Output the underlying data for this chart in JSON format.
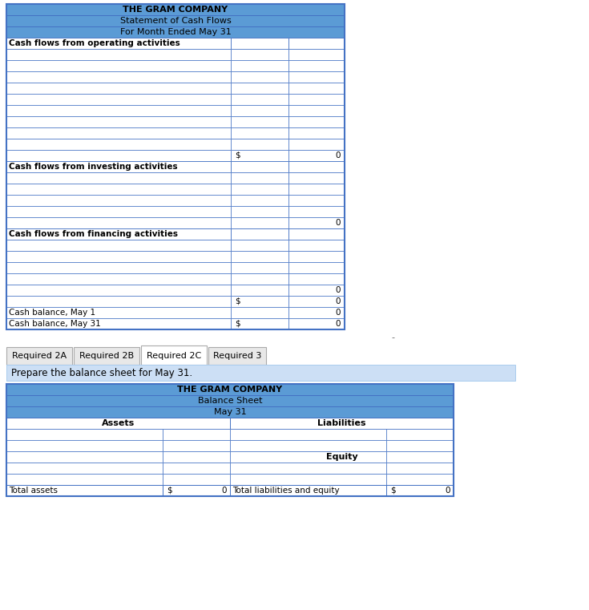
{
  "title1": "THE GRAM COMPANY",
  "subtitle1": "Statement of Cash Flows",
  "subtitle2": "For Month Ended May 31",
  "section1_header": "Cash flows from operating activities",
  "section2_header": "Cash flows from investing activities",
  "section3_header": "Cash flows from financing activities",
  "cash_bal_may1_label": "Cash balance, May 1",
  "cash_bal_may31_label": "Cash balance, May 31",
  "header_bg": "#5B9BD5",
  "row_bg_white": "#FFFFFF",
  "border_color": "#4472C4",
  "inner_line_color": "#4472C4",
  "table_outer_border": "#4472C4",
  "tab_active_label": "Required 2C",
  "tab_labels": [
    "Required 2A",
    "Required 2B",
    "Required 2C",
    "Required 3"
  ],
  "instruction_text": "Prepare the balance sheet for May 31.",
  "bs_title1": "THE GRAM COMPANY",
  "bs_title2": "Balance Sheet",
  "bs_title3": "May 31",
  "bs_col1_header": "Assets",
  "bs_col2_header": "Liabilities",
  "bs_equity_label": "Equity",
  "bs_total_assets_label": "Total assets",
  "bs_total_le_label": "Total liabilities and equity",
  "dollar_sign": "$",
  "zero_val": "0",
  "minus_sign": "-",
  "figure_bg": "#FFFFFF",
  "tab_bg_inactive": "#E8E8E8",
  "tab_bg_active": "#FFFFFF",
  "tab_border": "#AAAAAA",
  "instr_bg": "#CCDFF5",
  "instr_border": "#AACCEE"
}
